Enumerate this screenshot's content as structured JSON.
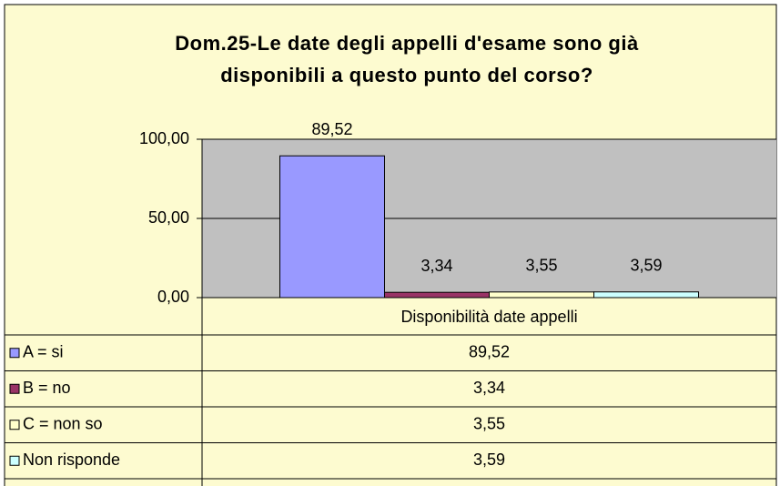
{
  "chart_data": {
    "type": "bar",
    "title": [
      "Dom.25-Le date degli appelli d'esame sono già",
      "disponibili a questo punto del corso?"
    ],
    "categories": [
      "Disponibilità date appelli"
    ],
    "series": [
      {
        "name": "A = si",
        "color": "#9999ff",
        "values": [
          89.52
        ],
        "value_labels": [
          "89,52"
        ]
      },
      {
        "name": "B = no",
        "color": "#993366",
        "values": [
          3.34
        ],
        "value_labels": [
          "3,34"
        ]
      },
      {
        "name": "C = non so",
        "color": "#ffffcc",
        "values": [
          3.55
        ],
        "value_labels": [
          "3,55"
        ]
      },
      {
        "name": "Non risponde",
        "color": "#ccffff",
        "values": [
          3.59
        ],
        "value_labels": [
          "3,59"
        ]
      }
    ],
    "ylim": [
      0,
      100
    ],
    "yticks": [
      {
        "value": 0,
        "label": "0,00"
      },
      {
        "value": 50,
        "label": "50,00"
      },
      {
        "value": 100,
        "label": "100,00"
      }
    ],
    "grid": true,
    "data_table": true
  }
}
